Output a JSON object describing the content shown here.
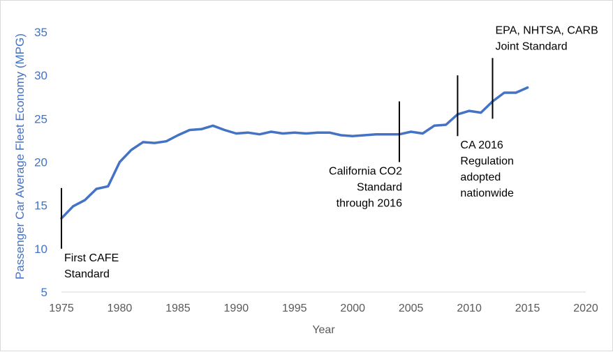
{
  "chart_data": {
    "type": "line",
    "title": "",
    "xlabel": "Year",
    "ylabel": "Passenger Car Average Fleet Economy (MPG)",
    "xlim": [
      1975,
      2020
    ],
    "ylim": [
      5,
      35
    ],
    "xticks": [
      1975,
      1980,
      1985,
      1990,
      1995,
      2000,
      2005,
      2010,
      2015,
      2020
    ],
    "yticks": [
      5,
      10,
      15,
      20,
      25,
      30,
      35
    ],
    "grid": false,
    "series": [
      {
        "name": "Passenger Car Average Fleet Economy",
        "color": "#4472c4",
        "x": [
          1975,
          1976,
          1977,
          1978,
          1979,
          1980,
          1981,
          1982,
          1983,
          1984,
          1985,
          1986,
          1987,
          1988,
          1989,
          1990,
          1991,
          1992,
          1993,
          1994,
          1995,
          1996,
          1997,
          1998,
          1999,
          2000,
          2001,
          2002,
          2003,
          2004,
          2005,
          2006,
          2007,
          2008,
          2009,
          2010,
          2011,
          2012,
          2013,
          2014,
          2015
        ],
        "y": [
          13.5,
          14.9,
          15.6,
          16.9,
          17.2,
          20.0,
          21.4,
          22.3,
          22.2,
          22.4,
          23.1,
          23.7,
          23.8,
          24.2,
          23.7,
          23.3,
          23.4,
          23.2,
          23.5,
          23.3,
          23.4,
          23.3,
          23.4,
          23.4,
          23.1,
          23.0,
          23.1,
          23.2,
          23.2,
          23.2,
          23.5,
          23.3,
          24.2,
          24.3,
          25.5,
          25.9,
          25.7,
          27.0,
          28.0,
          28.0,
          28.6
        ]
      }
    ],
    "annotations": [
      {
        "year": 1975,
        "y_from": 10.0,
        "y_to": 17.0,
        "lines": [
          "First CAFE",
          "Standard"
        ],
        "align": "left",
        "position": "below"
      },
      {
        "year": 2004,
        "y_from": 20.0,
        "y_to": 27.0,
        "lines": [
          "California CO2",
          "Standard",
          "through 2016"
        ],
        "align": "right",
        "position": "below"
      },
      {
        "year": 2009,
        "y_from": 23.0,
        "y_to": 30.0,
        "lines": [
          "CA 2016",
          "Regulation",
          "adopted",
          "nationwide"
        ],
        "align": "left",
        "position": "below"
      },
      {
        "year": 2012,
        "y_from": 25.0,
        "y_to": 32.0,
        "lines": [
          "EPA, NHTSA, CARB",
          "Joint Standard"
        ],
        "align": "left",
        "position": "above"
      }
    ]
  }
}
